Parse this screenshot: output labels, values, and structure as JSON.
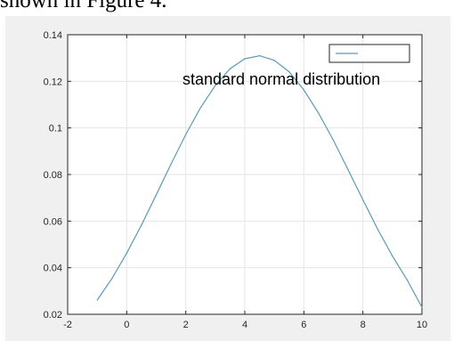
{
  "page_text": "shown in Figure 4.",
  "chart_data": {
    "type": "line",
    "title": "",
    "xlabel": "",
    "ylabel": "",
    "xlim": [
      -2,
      10
    ],
    "ylim": [
      0.02,
      0.14
    ],
    "x_ticks": [
      -2,
      0,
      2,
      4,
      6,
      8,
      10
    ],
    "x_tick_labels": [
      "-2",
      "0",
      "2",
      "4",
      "6",
      "8",
      "10"
    ],
    "y_ticks": [
      0.02,
      0.04,
      0.06,
      0.08,
      0.1,
      0.12,
      0.14
    ],
    "y_tick_labels": [
      "0.02",
      "0.04",
      "0.06",
      "0.08",
      "0.1",
      "0.12",
      "0.14"
    ],
    "grid": true,
    "legend": {
      "location": "top-right",
      "entries": [
        ""
      ]
    },
    "annotation": "standard normal distribution",
    "series": [
      {
        "color": "#5b9bb5",
        "x": [
          -1,
          -0.5,
          0,
          0.5,
          1,
          1.5,
          2,
          2.5,
          3,
          3.5,
          4,
          4.5,
          5,
          5.5,
          6,
          6.5,
          7,
          7.5,
          8,
          8.5,
          9,
          9.5,
          10
        ],
        "y": [
          0.0261,
          0.0354,
          0.0462,
          0.0583,
          0.0713,
          0.0845,
          0.0972,
          0.1087,
          0.1182,
          0.1254,
          0.1297,
          0.131,
          0.129,
          0.1241,
          0.1163,
          0.1063,
          0.0947,
          0.082,
          0.0691,
          0.0565,
          0.045,
          0.0347,
          0.023
        ]
      }
    ]
  }
}
